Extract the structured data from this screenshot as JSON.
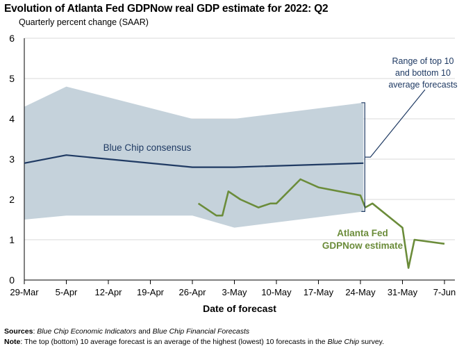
{
  "chart_data": {
    "type": "line",
    "title": "Evolution of Atlanta Fed GDPNow real GDP estimate for 2022: Q2",
    "subtitle": "Quarterly percent change (SAAR)",
    "xlabel": "Date of forecast",
    "ylabel": "",
    "ylim": [
      0,
      6
    ],
    "yticks": [
      0,
      1,
      2,
      3,
      4,
      5,
      6
    ],
    "xlim": [
      0,
      70
    ],
    "xticks": [
      {
        "x": 0,
        "label": "29-Mar"
      },
      {
        "x": 7,
        "label": "5-Apr"
      },
      {
        "x": 14,
        "label": "12-Apr"
      },
      {
        "x": 21,
        "label": "19-Apr"
      },
      {
        "x": 28,
        "label": "26-Apr"
      },
      {
        "x": 35,
        "label": "3-May"
      },
      {
        "x": 42,
        "label": "10-May"
      },
      {
        "x": 49,
        "label": "17-May"
      },
      {
        "x": 56,
        "label": "24-May"
      },
      {
        "x": 63,
        "label": "31-May"
      },
      {
        "x": 70,
        "label": "7-Jun"
      }
    ],
    "range_band": {
      "name": "Range of top 10 and bottom 10 average forecasts",
      "x": [
        0,
        7,
        28,
        35,
        56.5
      ],
      "upper": [
        4.3,
        4.8,
        4.0,
        4.0,
        4.4
      ],
      "lower": [
        1.5,
        1.6,
        1.6,
        1.3,
        1.7
      ]
    },
    "series": [
      {
        "name": "Blue Chip consensus",
        "color": "#1f3a63",
        "x": [
          0,
          7,
          28,
          35,
          56.5
        ],
        "values": [
          2.9,
          3.1,
          2.8,
          2.8,
          2.9
        ]
      },
      {
        "name": "Atlanta Fed GDPNow estimate",
        "color": "#6b8c3a",
        "x": [
          29,
          32,
          33,
          34,
          36,
          39,
          41,
          42,
          46,
          49,
          56,
          56.8,
          58,
          63,
          64,
          65,
          70
        ],
        "values": [
          1.9,
          1.6,
          1.6,
          2.2,
          2.0,
          1.8,
          1.9,
          1.9,
          2.5,
          2.3,
          2.1,
          1.8,
          1.9,
          1.3,
          0.3,
          1.0,
          0.9
        ]
      }
    ],
    "annotations": {
      "band_label": [
        "Range of top 10",
        "and bottom 10",
        "average forecasts"
      ],
      "consensus_label": "Blue Chip consensus",
      "gdpnow_label": [
        "Atlanta Fed",
        "GDPNow estimate"
      ]
    }
  },
  "footer": {
    "sources_label": "Sources",
    "sources_text_a": "Blue Chip Economic Indicators",
    "sources_and": " and ",
    "sources_text_b": "Blue Chip Financial Forecasts",
    "note_label": "Note",
    "note_text_a": ": The top (bottom) 10 average forecast is an average of the highest (lowest) 10 forecasts in the ",
    "note_text_b": "Blue Chip",
    "note_text_c": " survey."
  },
  "colors": {
    "band": "#c5d2db",
    "axis": "#000000",
    "gridline": "#d9d9d9",
    "callout_blue": "#1f3a63",
    "gdpnow_green": "#6b8c3a"
  }
}
